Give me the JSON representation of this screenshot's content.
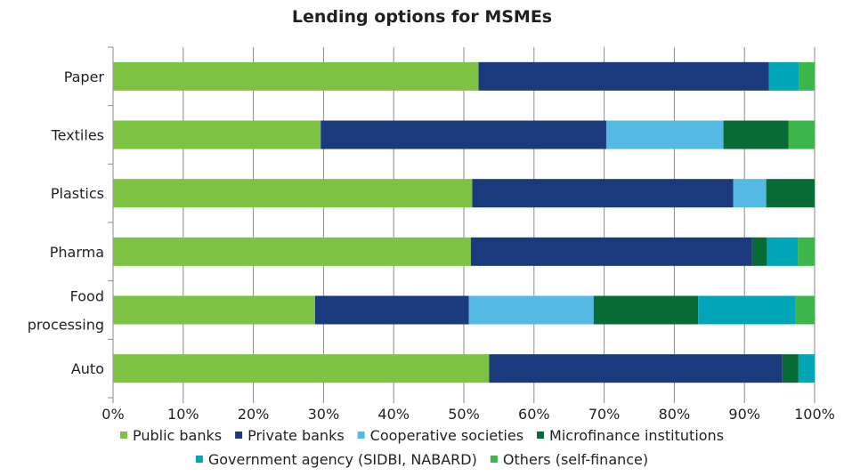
{
  "chart_data": {
    "type": "bar",
    "orientation": "horizontal",
    "stacked": true,
    "title": "Lending options for MSMEs",
    "categories": [
      [
        "Paper"
      ],
      [
        "Textiles"
      ],
      [
        "Plastics"
      ],
      [
        "Pharma"
      ],
      [
        "Food",
        "processing"
      ],
      [
        "Auto"
      ]
    ],
    "xlim": [
      0,
      100
    ],
    "xticks": [
      "0%",
      "10%",
      "20%",
      "30%",
      "40%",
      "50%",
      "60%",
      "70%",
      "80%",
      "90%",
      "100%"
    ],
    "grid": true,
    "legend_position": "bottom",
    "series": [
      {
        "name": "Public banks",
        "color": "#7dc242",
        "values": [
          52.1,
          29.6,
          51.2,
          51.0,
          28.8,
          53.6
        ]
      },
      {
        "name": "Private banks",
        "color": "#1b3a7d",
        "values": [
          41.4,
          40.7,
          37.2,
          40.1,
          21.9,
          41.8
        ]
      },
      {
        "name": "Cooperative societies",
        "color": "#55b9e6",
        "values": [
          0,
          16.7,
          4.7,
          0,
          17.8,
          0
        ]
      },
      {
        "name": "Microfinance institutions",
        "color": "#076b36",
        "values": [
          0,
          9.3,
          6.9,
          2.1,
          14.9,
          2.3
        ]
      },
      {
        "name": "Government agency (SIDBI, NABARD)",
        "color": "#00a5b8",
        "values": [
          4.3,
          0,
          0,
          4.4,
          13.9,
          2.3
        ]
      },
      {
        "name": "Others (self-finance)",
        "color": "#3cb54a",
        "values": [
          2.2,
          3.7,
          0,
          2.4,
          2.7,
          0
        ]
      }
    ]
  }
}
